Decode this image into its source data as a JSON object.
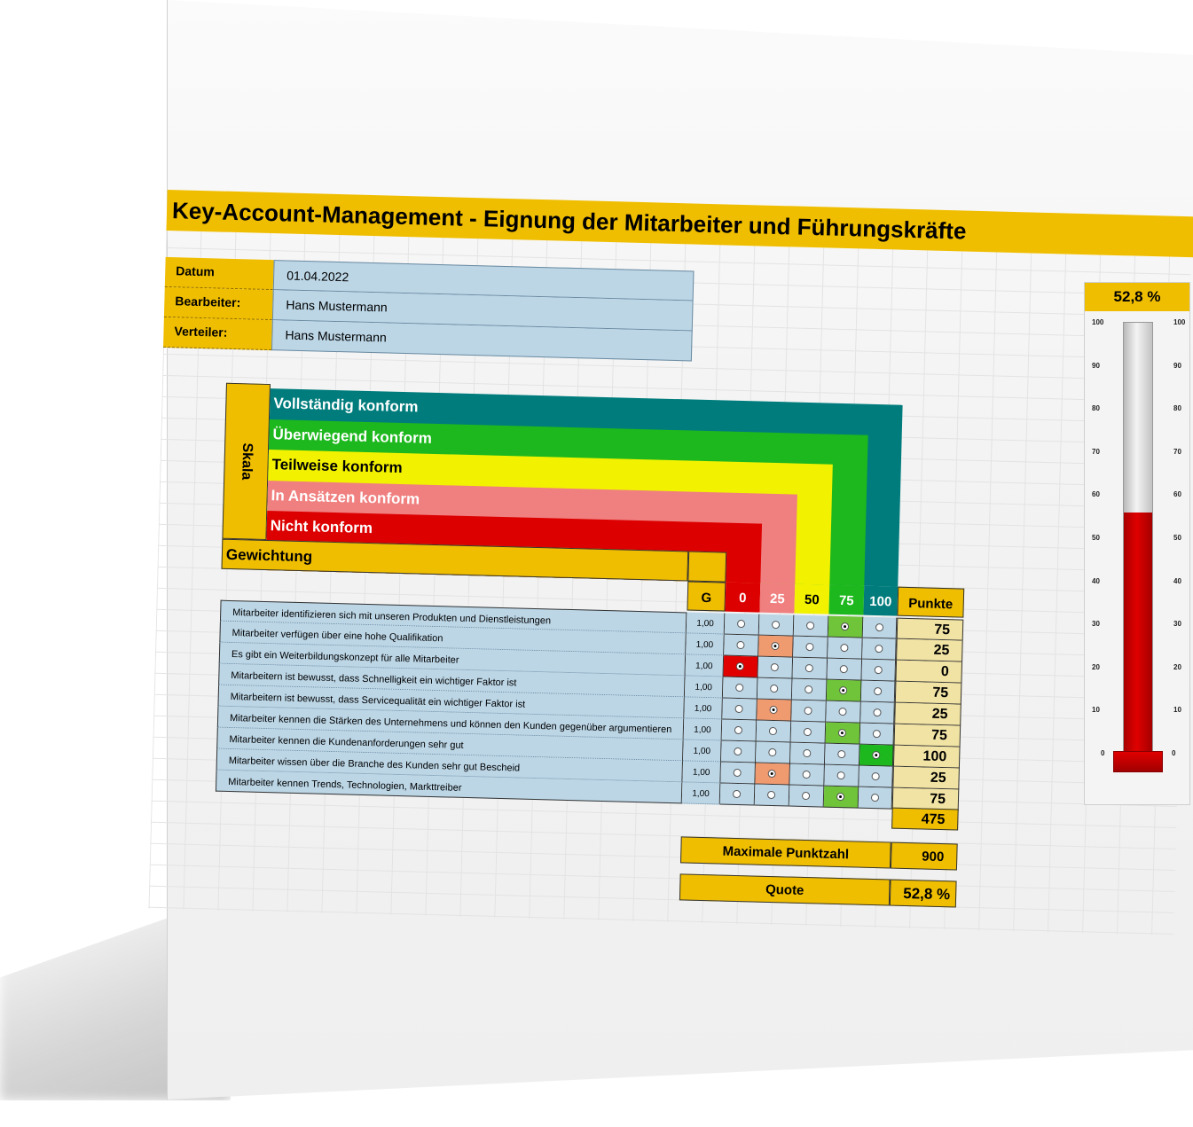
{
  "title": "Key-Account-Management - Eignung der Mitarbeiter und Führungskräfte",
  "meta": [
    {
      "label": "Datum",
      "value": "01.04.2022"
    },
    {
      "label": "Bearbeiter:",
      "value": "Hans Mustermann"
    },
    {
      "label": "Verteiler:",
      "value": "Hans Mustermann"
    }
  ],
  "skala_label": "Skala",
  "scale": [
    {
      "label": "Vollständig konform",
      "color": "#007c7c",
      "text_color": "#ffffff"
    },
    {
      "label": "Überwiegend konform",
      "color": "#1db81d",
      "text_color": "#ffffff"
    },
    {
      "label": "Teilweise konform",
      "color": "#f2f200",
      "text_color": "#000000"
    },
    {
      "label": "In Ansätzen konform",
      "color": "#f07f7f",
      "text_color": "#ffffff"
    },
    {
      "label": "Nicht konform",
      "color": "#dd0000",
      "text_color": "#ffffff"
    }
  ],
  "gewichtung_label": "Gewichtung",
  "headers": {
    "g": "G",
    "c0": "0",
    "c25": "25",
    "c50": "50",
    "c75": "75",
    "c100": "100",
    "punkte": "Punkte"
  },
  "selected_colors": [
    "#e00000",
    "#f09a70",
    "#f2f200",
    "#6fc43a",
    "#1db81d"
  ],
  "rows": [
    {
      "text": "Mitarbeiter identifizieren sich mit unseren Produkten und Dienstleistungen",
      "g": "1,00",
      "sel": 3,
      "pts": "75"
    },
    {
      "text": "Mitarbeiter verfügen über eine hohe Qualifikation",
      "g": "1,00",
      "sel": 1,
      "pts": "25"
    },
    {
      "text": "Es gibt ein Weiterbildungskonzept für alle Mitarbeiter",
      "g": "1,00",
      "sel": 0,
      "pts": "0"
    },
    {
      "text": "Mitarbeitern ist bewusst, dass Schnelligkeit ein wichtiger Faktor ist",
      "g": "1,00",
      "sel": 3,
      "pts": "75"
    },
    {
      "text": "Mitarbeitern ist bewusst, dass Servicequalität ein wichtiger Faktor ist",
      "g": "1,00",
      "sel": 1,
      "pts": "25"
    },
    {
      "text": "Mitarbeiter kennen die Stärken des Unternehmens und können den Kunden gegenüber argumentieren",
      "g": "1,00",
      "sel": 3,
      "pts": "75"
    },
    {
      "text": "Mitarbeiter kennen die Kundenanforderungen sehr gut",
      "g": "1,00",
      "sel": 4,
      "pts": "100"
    },
    {
      "text": "Mitarbeiter wissen über die Branche des Kunden sehr gut Bescheid",
      "g": "1,00",
      "sel": 1,
      "pts": "25"
    },
    {
      "text": "Mitarbeiter kennen Trends, Technologien, Markttreiber",
      "g": "1,00",
      "sel": 3,
      "pts": "75"
    }
  ],
  "total_points": "475",
  "max_label": "Maximale Punktzahl",
  "max_value": "900",
  "quote_label": "Quote",
  "quote_value": "52,8 %",
  "thermometer": {
    "display": "52,8 %",
    "level_percent": 52.8,
    "ticks": [
      "100",
      "90",
      "80",
      "70",
      "60",
      "50",
      "40",
      "30",
      "20",
      "10",
      "0"
    ]
  }
}
